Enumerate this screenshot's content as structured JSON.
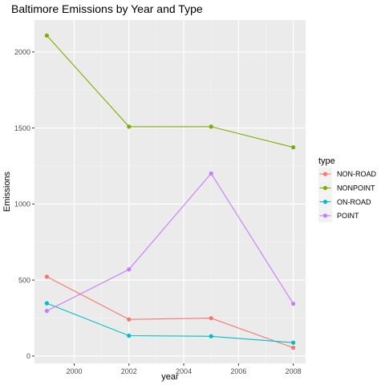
{
  "chart_data": {
    "type": "line",
    "title": "Baltimore Emissions by Year and Type",
    "xlabel": "year",
    "ylabel": "Emissions",
    "x": [
      1999,
      2002,
      2005,
      2008
    ],
    "xlim": [
      1998.55,
      2008.45
    ],
    "ylim": [
      -48,
      2210
    ],
    "xticks": [
      2000,
      2002,
      2004,
      2006,
      2008
    ],
    "yticks": [
      0,
      500,
      1000,
      1500,
      2000
    ],
    "grid": true,
    "legend": {
      "title": "type",
      "position": "right"
    },
    "series": [
      {
        "name": "NON-ROAD",
        "color": "#F8766D",
        "values": [
          522,
          241,
          249,
          55
        ]
      },
      {
        "name": "NONPOINT",
        "color": "#7CAE00",
        "values": [
          2108,
          1509,
          1509,
          1373
        ]
      },
      {
        "name": "ON-ROAD",
        "color": "#00BFC4",
        "values": [
          347,
          134,
          130,
          88
        ]
      },
      {
        "name": "POINT",
        "color": "#C77CFF",
        "values": [
          297,
          570,
          1201,
          344
        ]
      }
    ]
  }
}
